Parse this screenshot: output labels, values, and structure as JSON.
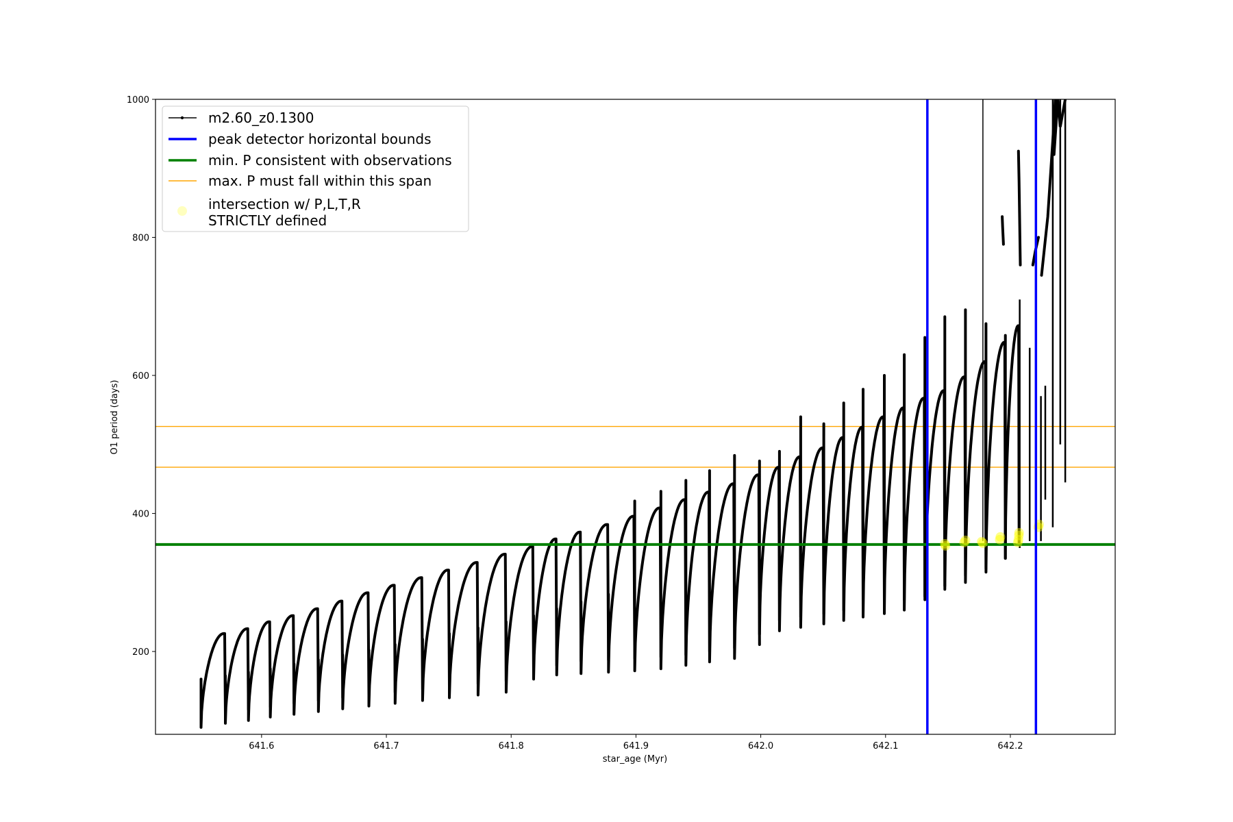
{
  "chart_data": {
    "type": "line",
    "xlabel": "star_age (Myr)",
    "ylabel": "O1 period (days)",
    "xlim": [
      641.515,
      642.284
    ],
    "ylim": [
      80,
      1000
    ],
    "xticks": [
      641.6,
      641.7,
      641.8,
      641.9,
      642.0,
      642.1,
      642.2
    ],
    "xtick_labels": [
      "641.6",
      "641.7",
      "641.8",
      "641.9",
      "642.0",
      "642.1",
      "642.2"
    ],
    "yticks": [
      200,
      400,
      600,
      800,
      1000
    ],
    "ytick_labels": [
      "200",
      "400",
      "600",
      "800",
      "1000"
    ],
    "grid": false,
    "legend_position": "upper-left",
    "series": [
      {
        "name": "m2.60_z0.1300",
        "color": "#000000",
        "style": "line-with-dots",
        "cycles": [
          {
            "start": 641.5515,
            "end": 641.571,
            "low": 90,
            "peak": 226,
            "spike": 160
          },
          {
            "start": 641.571,
            "end": 641.5895,
            "low": 96,
            "peak": 233,
            "spike": 165
          },
          {
            "start": 641.5895,
            "end": 641.607,
            "low": 100,
            "peak": 243,
            "spike": 170
          },
          {
            "start": 641.607,
            "end": 641.626,
            "low": 105,
            "peak": 252,
            "spike": 175
          },
          {
            "start": 641.626,
            "end": 641.6455,
            "low": 109,
            "peak": 262,
            "spike": 182
          },
          {
            "start": 641.6455,
            "end": 641.665,
            "low": 113,
            "peak": 273,
            "spike": 188
          },
          {
            "start": 641.665,
            "end": 641.686,
            "low": 117,
            "peak": 285,
            "spike": 195
          },
          {
            "start": 641.686,
            "end": 641.707,
            "low": 121,
            "peak": 296,
            "spike": 202
          },
          {
            "start": 641.707,
            "end": 641.729,
            "low": 125,
            "peak": 307,
            "spike": 210
          },
          {
            "start": 641.729,
            "end": 641.7505,
            "low": 129,
            "peak": 318,
            "spike": 218
          },
          {
            "start": 641.7505,
            "end": 641.7735,
            "low": 133,
            "peak": 329,
            "spike": 226
          },
          {
            "start": 641.7735,
            "end": 641.796,
            "low": 137,
            "peak": 341,
            "spike": 234
          },
          {
            "start": 641.796,
            "end": 641.818,
            "low": 141,
            "peak": 352,
            "spike": 243
          },
          {
            "start": 641.818,
            "end": 641.8365,
            "low": 160,
            "peak": 363,
            "spike": 252
          },
          {
            "start": 641.8365,
            "end": 641.856,
            "low": 166,
            "peak": 373,
            "spike": 262
          },
          {
            "start": 641.856,
            "end": 641.878,
            "low": 168,
            "peak": 384,
            "spike": 272
          },
          {
            "start": 641.878,
            "end": 641.899,
            "low": 170,
            "peak": 396,
            "spike": 283
          },
          {
            "start": 641.899,
            "end": 641.92,
            "low": 172,
            "peak": 408,
            "spike": 418
          },
          {
            "start": 641.92,
            "end": 641.94,
            "low": 175,
            "peak": 420,
            "spike": 432
          },
          {
            "start": 641.94,
            "end": 641.959,
            "low": 180,
            "peak": 431,
            "spike": 448
          },
          {
            "start": 641.959,
            "end": 641.979,
            "low": 185,
            "peak": 443,
            "spike": 462
          },
          {
            "start": 641.979,
            "end": 641.999,
            "low": 190,
            "peak": 456,
            "spike": 484
          },
          {
            "start": 641.999,
            "end": 642.015,
            "low": 225,
            "peak": 467,
            "spike": 476
          },
          {
            "start": 642.015,
            "end": 642.032,
            "low": 230,
            "peak": 482,
            "spike": 490
          },
          {
            "start": 642.032,
            "end": 642.0505,
            "low": 235,
            "peak": 495,
            "spike": 540
          },
          {
            "start": 642.0505,
            "end": 642.0665,
            "low": 240,
            "peak": 510,
            "spike": 530
          },
          {
            "start": 642.0665,
            "end": 642.082,
            "low": 245,
            "peak": 525,
            "spike": 560
          },
          {
            "start": 642.082,
            "end": 642.099,
            "low": 250,
            "peak": 540,
            "spike": 580
          },
          {
            "start": 642.099,
            "end": 642.115,
            "low": 255,
            "peak": 553,
            "spike": 600
          },
          {
            "start": 642.115,
            "end": 642.1315,
            "low": 260,
            "peak": 567,
            "spike": 630
          },
          {
            "start": 642.1315,
            "end": 642.1475,
            "low": 275,
            "peak": 578,
            "spike": 655
          },
          {
            "start": 642.1475,
            "end": 642.164,
            "low": 290,
            "peak": 598,
            "spike": 685
          },
          {
            "start": 642.164,
            "end": 642.1805,
            "low": 300,
            "peak": 620,
            "spike": 695
          },
          {
            "start": 642.1805,
            "end": 642.196,
            "low": 315,
            "peak": 648,
            "spike": 675
          },
          {
            "start": 642.196,
            "end": 642.207,
            "low": 335,
            "peak": 672,
            "spike": 658
          }
        ],
        "upper_segments": [
          {
            "x": [
              642.2065,
              642.207,
              642.208
            ],
            "y": [
              925,
              880,
              760
            ]
          },
          {
            "x": [
              642.1935,
              642.1938,
              642.1945
            ],
            "y": [
              830,
              815,
              790
            ]
          },
          {
            "x": [
              642.218,
              642.22,
              642.2225
            ],
            "y": [
              760,
              780,
              800
            ]
          },
          {
            "x": [
              642.225,
              642.23,
              642.234,
              642.236
            ],
            "y": [
              745,
              830,
              940,
              1000
            ]
          },
          {
            "x": [
              642.235,
              642.238,
              642.24,
              642.244
            ],
            "y": [
              920,
              1000,
              960,
              1000
            ]
          }
        ],
        "spikes": [
          {
            "x": 642.178,
            "from": 360,
            "to": 1000
          },
          {
            "x": 642.2075,
            "from": 350,
            "to": 710
          },
          {
            "x": 642.2155,
            "from": 360,
            "to": 640
          },
          {
            "x": 642.2245,
            "from": 360,
            "to": 570
          },
          {
            "x": 642.228,
            "from": 420,
            "to": 585
          },
          {
            "x": 642.234,
            "from": 380,
            "to": 1000
          },
          {
            "x": 642.24,
            "from": 500,
            "to": 1000
          },
          {
            "x": 642.244,
            "from": 445,
            "to": 1000
          }
        ]
      },
      {
        "name": "peak detector horizontal bounds",
        "color": "#0000ff",
        "style": "vertical-line",
        "x": [
          642.1335,
          642.2205
        ]
      },
      {
        "name": "min. P consistent with observations",
        "color": "#008000",
        "style": "horizontal-line",
        "y": 355
      },
      {
        "name": "max. P must fall within this span",
        "color": "#ffa500",
        "style": "horizontal-line",
        "y": [
          467,
          526
        ]
      },
      {
        "name": "intersection w/ P,L,T,R\nSTRICTLY defined",
        "color": "#ffff00",
        "style": "scatter",
        "points": [
          {
            "x": 642.1475,
            "y": 356
          },
          {
            "x": 642.148,
            "y": 353
          },
          {
            "x": 642.163,
            "y": 358
          },
          {
            "x": 642.164,
            "y": 361
          },
          {
            "x": 642.177,
            "y": 359
          },
          {
            "x": 642.178,
            "y": 357
          },
          {
            "x": 642.1915,
            "y": 362
          },
          {
            "x": 642.192,
            "y": 366
          },
          {
            "x": 642.206,
            "y": 358
          },
          {
            "x": 642.2065,
            "y": 362
          },
          {
            "x": 642.2068,
            "y": 368
          },
          {
            "x": 642.207,
            "y": 372
          },
          {
            "x": 642.2225,
            "y": 380
          },
          {
            "x": 642.223,
            "y": 384
          }
        ]
      }
    ]
  }
}
